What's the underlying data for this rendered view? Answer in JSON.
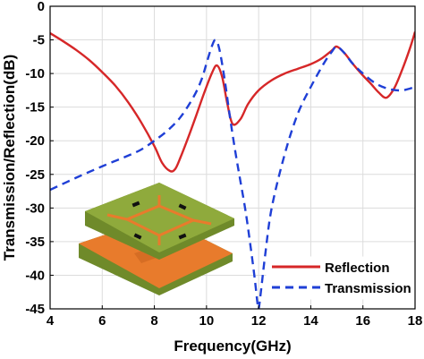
{
  "chart_data": {
    "type": "line",
    "xlabel": "Frequency(GHz)",
    "ylabel": "Transmission/Reflection(dB)",
    "xlim": [
      4,
      18
    ],
    "ylim": [
      -45,
      0
    ],
    "xticks": [
      "4",
      "6",
      "8",
      "10",
      "12",
      "14",
      "16",
      "18"
    ],
    "yticks": [
      "0",
      "-5",
      "-10",
      "-15",
      "-20",
      "-25",
      "-30",
      "-35",
      "-40",
      "-45"
    ],
    "grid": true,
    "legend_position": "bottom-right",
    "series": [
      {
        "name": "Reflection",
        "color": "#d62728",
        "style": "solid",
        "x": [
          4.0,
          4.5,
          5.0,
          5.5,
          6.0,
          6.5,
          7.0,
          7.5,
          8.0,
          8.3,
          8.6,
          8.8,
          9.0,
          9.3,
          9.6,
          9.9,
          10.2,
          10.4,
          10.6,
          10.8,
          11.0,
          11.3,
          11.6,
          12.0,
          12.5,
          13.0,
          13.5,
          14.0,
          14.4,
          14.8,
          15.0,
          15.3,
          15.6,
          16.0,
          16.3,
          16.6,
          16.9,
          17.2,
          17.5,
          17.8,
          18.0
        ],
        "y": [
          -4.0,
          -5.2,
          -6.5,
          -8.0,
          -9.8,
          -11.8,
          -14.3,
          -17.3,
          -20.8,
          -23.3,
          -24.5,
          -24.2,
          -22.5,
          -19.5,
          -16.3,
          -13.0,
          -10.0,
          -8.8,
          -10.5,
          -14.5,
          -17.5,
          -16.8,
          -14.5,
          -12.5,
          -11.0,
          -10.0,
          -9.3,
          -8.6,
          -7.8,
          -6.6,
          -6.0,
          -7.0,
          -8.5,
          -10.3,
          -11.5,
          -12.8,
          -13.6,
          -12.2,
          -9.5,
          -6.3,
          -3.8
        ]
      },
      {
        "name": "Transmission",
        "color": "#1f3fd6",
        "style": "dashed",
        "x": [
          4.0,
          5.0,
          6.0,
          7.0,
          7.5,
          8.0,
          8.5,
          9.0,
          9.5,
          9.8,
          10.0,
          10.2,
          10.35,
          10.5,
          10.7,
          10.9,
          11.1,
          11.3,
          11.5,
          11.7,
          11.85,
          11.95,
          12.0,
          12.1,
          12.25,
          12.5,
          13.0,
          13.5,
          14.0,
          14.5,
          14.8,
          15.0,
          15.3,
          15.6,
          16.0,
          16.5,
          17.0,
          17.5,
          18.0
        ],
        "y": [
          -27.3,
          -25.5,
          -23.8,
          -22.2,
          -21.3,
          -20.0,
          -18.5,
          -16.5,
          -13.5,
          -11.0,
          -8.5,
          -6.0,
          -5.0,
          -6.5,
          -11.0,
          -16.5,
          -21.5,
          -26.0,
          -30.5,
          -36.0,
          -40.5,
          -44.0,
          -45.0,
          -42.0,
          -37.0,
          -30.0,
          -22.0,
          -16.0,
          -12.0,
          -8.5,
          -6.8,
          -6.0,
          -7.0,
          -8.5,
          -10.0,
          -11.5,
          -12.3,
          -12.5,
          -12.0
        ]
      }
    ],
    "legend": {
      "entries": [
        "Reflection",
        "Transmission"
      ]
    },
    "inset": {
      "description_name": "metasurface-unit-cell-illustration",
      "top_layer_color": "#8faa3c",
      "pattern_color": "#e87b2c",
      "bottom_layer_color": "#e87b2c",
      "edge_color": "#6f8a2a"
    }
  }
}
